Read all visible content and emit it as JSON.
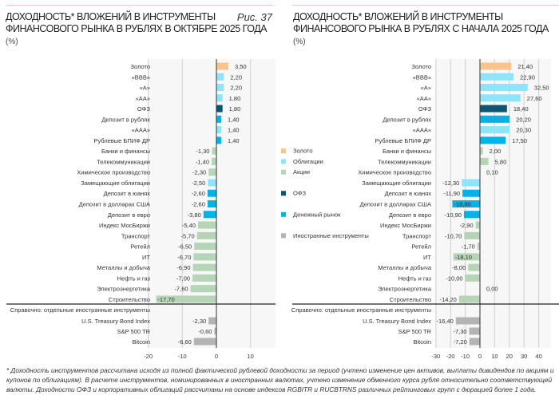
{
  "left": {
    "title_line1": "ДОХОДНОСТЬ* ВЛОЖЕНИЙ В ИНСТРУМЕНТЫ",
    "title_line2": "ФИНАНСОВОГО РЫНКА В РУБЛЯХ В ОКТЯБРЕ 2025 ГОДА",
    "unit": "(%)",
    "figure": "Рис. 37"
  },
  "right": {
    "title_line1": "ДОХОДНОСТЬ* ВЛОЖЕНИЙ В ИНСТРУМЕНТЫ",
    "title_line2": "ФИНАНСОВОГО РЫНКА В РУБЛЯХ С НАЧАЛА 2025 ГОДА",
    "unit": "(%)"
  },
  "legend": [
    {
      "key": "gold",
      "label": "Золото",
      "color": "#f8c48c"
    },
    {
      "key": "bonds",
      "label": "Облигации",
      "color": "#8fe4fa"
    },
    {
      "key": "stocks",
      "label": "Акции",
      "color": "#b6d5b6"
    },
    {
      "key": "ofz",
      "label": "ОФЗ",
      "color": "#0f5470"
    },
    {
      "key": "money",
      "label": "Денежный рынок",
      "color": "#05b2e6"
    },
    {
      "key": "foreign",
      "label": "Иностранные инструменты",
      "color": "#b4b4b4"
    }
  ],
  "chart_data": [
    {
      "type": "bar",
      "orientation": "horizontal",
      "title": "ДОХОДНОСТЬ* ВЛОЖЕНИЙ В ИНСТРУМЕНТЫ ФИНАНСОВОГО РЫНКА В РУБЛЯХ В ОКТЯБРЕ 2025 ГОДА",
      "xlim": [
        -20,
        15
      ],
      "xticks": [
        -20,
        -10,
        0,
        10
      ],
      "grid": true,
      "categories": [
        "Золото",
        "«BBB»",
        "«A»",
        "«AA»",
        "ОФЗ",
        "Депозит в рублях",
        "«AAA»",
        "Рублевые БПИФ ДР",
        "Банки и финансы",
        "Телекоммуникации",
        "Химическое производство",
        "Замещающие облигации",
        "Депозит в юанях",
        "Депозит в долларах США",
        "Депозит в евро",
        "Индекс МосБиржи",
        "Транспорт",
        "Ретейл",
        "ИТ",
        "Металлы и добыча",
        "Нефть и газ",
        "Электроэнергетика",
        "Строительство"
      ],
      "groups": [
        "gold",
        "bonds",
        "bonds",
        "bonds",
        "ofz",
        "money",
        "bonds",
        "money",
        "stocks",
        "stocks",
        "stocks",
        "bonds",
        "money",
        "money",
        "money",
        "stocks",
        "stocks",
        "stocks",
        "stocks",
        "stocks",
        "stocks",
        "stocks",
        "stocks"
      ],
      "values": [
        3.5,
        2.2,
        2.2,
        1.8,
        1.8,
        1.4,
        1.4,
        1.4,
        -1.3,
        -1.4,
        -2.3,
        -2.5,
        -2.6,
        -2.6,
        -3.8,
        -5.4,
        -5.7,
        -6.5,
        -6.7,
        -6.9,
        -7.0,
        -7.6,
        -17.7
      ],
      "labels": [
        "3,50",
        "2,20",
        "2,20",
        "1,80",
        "1,80",
        "1,40",
        "1,40",
        "1,40",
        "-1,30",
        "-1,40",
        "-2,30",
        "-2,50",
        "-2,60",
        "-2,60",
        "-3,80",
        "-5,40",
        "-5,70",
        "-6,50",
        "-6,70",
        "-6,90",
        "-7,00",
        "-7,60",
        "-17,70"
      ],
      "reference_header": "Справочно: отдельные иностранные инструменты",
      "reference": {
        "categories": [
          "U.S. Treasury Bond Index",
          "S&P 500 TR",
          "Bitcoin"
        ],
        "values": [
          -2.3,
          -0.6,
          -6.6
        ],
        "labels": [
          "-2,30",
          "-0,60",
          "-6,60"
        ]
      }
    },
    {
      "type": "bar",
      "orientation": "horizontal",
      "title": "ДОХОДНОСТЬ* ВЛОЖЕНИЙ В ИНСТРУМЕНТЫ ФИНАНСОВОГО РЫНКА В РУБЛЯХ С НАЧАЛА 2025 ГОДА",
      "xlim": [
        -30,
        40
      ],
      "xticks": [
        -30,
        -20,
        -10,
        0,
        10,
        20,
        30,
        40
      ],
      "grid": true,
      "categories": [
        "Золото",
        "«BBB»",
        "«A»",
        "«AA»",
        "ОФЗ",
        "Депозит в рублях",
        "«AAA»",
        "Рублевые БПИФ ДР",
        "Банки и финансы",
        "Телекоммуникации",
        "Химическое производство",
        "Замещающие облигации",
        "Депозит в юанях",
        "Депозит в долларах США",
        "Депозит в евро",
        "Индекс МосБиржи",
        "Транспорт",
        "Ретейл",
        "ИТ",
        "Металлы и добыча",
        "Нефть и газ",
        "Электроэнергетика",
        "Строительство"
      ],
      "groups": [
        "gold",
        "bonds",
        "bonds",
        "bonds",
        "ofz",
        "money",
        "bonds",
        "money",
        "stocks",
        "stocks",
        "stocks",
        "bonds",
        "money",
        "money",
        "money",
        "stocks",
        "stocks",
        "stocks",
        "stocks",
        "stocks",
        "stocks",
        "stocks",
        "stocks"
      ],
      "values": [
        21.4,
        22.9,
        32.5,
        27.6,
        18.4,
        20.2,
        20.3,
        17.5,
        2.0,
        5.8,
        0.1,
        -12.3,
        -11.9,
        -18.8,
        -10.9,
        -2.9,
        -10.7,
        -1.7,
        -18.1,
        -8.0,
        -10.0,
        0.0,
        -14.2
      ],
      "labels": [
        "21,40",
        "22,90",
        "32,50",
        "27,60",
        "18,40",
        "20,20",
        "20,30",
        "17,50",
        "2,00",
        "5,80",
        "0,10",
        "-12,30",
        "-11,90",
        "-18,80",
        "-10,90",
        "-2,90",
        "-10,70",
        "-1,70",
        "-18,10",
        "-8,00",
        "-10,00",
        "0,00",
        "-14,20"
      ],
      "reference_header": "Справочно: отдельные иностранные инструменты",
      "reference": {
        "categories": [
          "U.S. Treasury Bond Index",
          "S&P 500 TR",
          "Bitcoin"
        ],
        "values": [
          -16.4,
          -7.3,
          -7.2
        ],
        "labels": [
          "-16,40",
          "-7,30",
          "-7,20"
        ]
      }
    }
  ],
  "footnote": "* Доходность инструментов рассчитана исходя из полной фактической рублевой доходности за период (учтено изменение цен активов, выплаты дивидендов по акциям и купонов по облигациям). В расчете инструментов, номинированных в иностранных валютах, учтено изменение обменного курса рубля относительно соответствующей валюты. Доходности ОФЗ и корпоративных облигаций рассчитаны на основе индексов RGBITR и RUCBTRNS различных рейтинговых групп с дюрацией более 1 года."
}
